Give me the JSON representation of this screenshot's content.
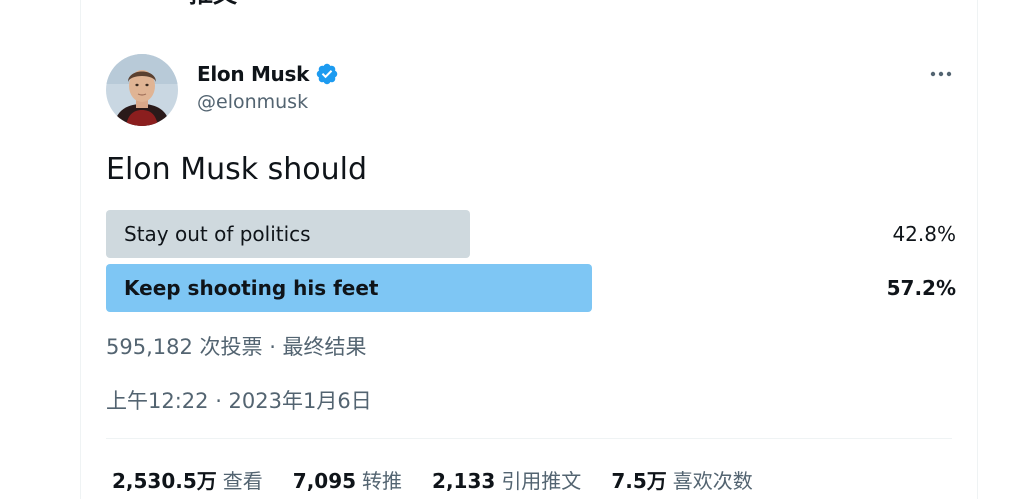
{
  "header": {
    "title": "推文"
  },
  "tweet": {
    "author": {
      "name": "Elon Musk",
      "handle": "@elonmusk",
      "verified": true
    },
    "text": "Elon Musk should",
    "poll": {
      "options": [
        {
          "label": "Stay out of politics",
          "percent_text": "42.8%",
          "percent": 42.8,
          "winner": false
        },
        {
          "label": "Keep shooting his feet",
          "percent_text": "57.2%",
          "percent": 57.2,
          "winner": true
        }
      ],
      "meta": "595,182 次投票 · 最终结果"
    },
    "timestamp": "上午12:22 · 2023年1月6日",
    "stats": [
      {
        "value": "2,530.5万",
        "label": "查看"
      },
      {
        "value": "7,095",
        "label": "转推"
      },
      {
        "value": "2,133",
        "label": "引用推文"
      },
      {
        "value": "7.5万",
        "label": "喜欢次数"
      }
    ]
  },
  "icons": {
    "back": "arrow-left-icon",
    "verified": "verified-badge-icon",
    "more": "more-dots-icon"
  },
  "colors": {
    "accent": "#1d9bf0",
    "poll_winner": "#7ec6f4",
    "poll_other": "#cfd9de",
    "secondary_text": "#536471"
  }
}
